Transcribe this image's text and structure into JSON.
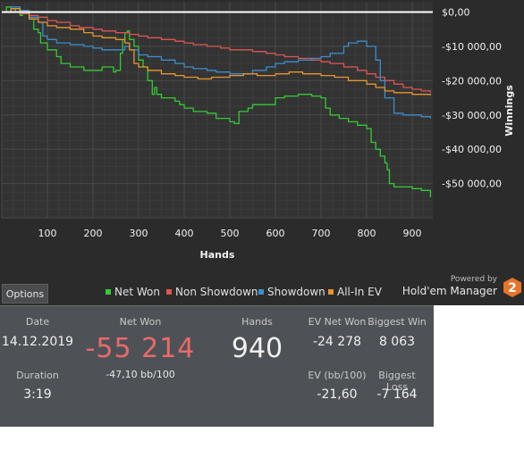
{
  "chart_data": {
    "type": "line",
    "xlabel": "Hands",
    "ylabel": "Winnings",
    "xlim": [
      0,
      945
    ],
    "ylim": [
      -60000,
      3000
    ],
    "x_ticks": [
      100,
      200,
      300,
      400,
      500,
      600,
      700,
      800,
      900
    ],
    "y_ticks": [
      0,
      -10000,
      -20000,
      -30000,
      -40000,
      -50000
    ],
    "y_tick_labels": [
      "$0,00",
      "-$10 000,00",
      "-$20 000,00",
      "-$30 000,00",
      "-$40 000,00",
      "-$50 000,00"
    ],
    "grid": true,
    "zero_line": true,
    "legend_position": "bottom",
    "series": [
      {
        "name": "Net Won",
        "color": "#33cc33",
        "x": [
          0,
          10,
          20,
          30,
          40,
          45,
          60,
          70,
          80,
          85,
          100,
          120,
          130,
          150,
          180,
          200,
          220,
          245,
          250,
          260,
          265,
          270,
          275,
          280,
          290,
          300,
          310,
          320,
          330,
          335,
          340,
          350,
          380,
          390,
          400,
          420,
          450,
          470,
          500,
          510,
          520,
          540,
          550,
          600,
          620,
          650,
          680,
          700,
          710,
          720,
          740,
          760,
          780,
          800,
          810,
          820,
          830,
          840,
          845,
          850,
          860,
          880,
          900,
          920,
          940
        ],
        "y": [
          0,
          1500,
          1000,
          0,
          -1000,
          -500,
          -2000,
          -5000,
          -6000,
          -9000,
          -11000,
          -13000,
          -15000,
          -16000,
          -17000,
          -17000,
          -16000,
          -17500,
          -17000,
          -12000,
          -8000,
          -6000,
          -5500,
          -8000,
          -10000,
          -14000,
          -16000,
          -20000,
          -24000,
          -22000,
          -24000,
          -25000,
          -26000,
          -27000,
          -28000,
          -29000,
          -29500,
          -31000,
          -32000,
          -32500,
          -29000,
          -28000,
          -27000,
          -25000,
          -24500,
          -24000,
          -24500,
          -25000,
          -28000,
          -30000,
          -31000,
          -32000,
          -33000,
          -34000,
          -38000,
          -40000,
          -42000,
          -44000,
          -46000,
          -50000,
          -51000,
          -51000,
          -51500,
          -52000,
          -54000
        ]
      },
      {
        "name": "Non Showdown",
        "color": "#e05555",
        "x": [
          0,
          20,
          40,
          60,
          80,
          100,
          120,
          150,
          170,
          200,
          220,
          250,
          280,
          300,
          320,
          350,
          380,
          400,
          420,
          450,
          480,
          500,
          550,
          580,
          600,
          620,
          650,
          680,
          700,
          720,
          750,
          780,
          800,
          820,
          840,
          860,
          880,
          900,
          920,
          940
        ],
        "y": [
          0,
          0,
          -500,
          -1000,
          -1500,
          -2500,
          -3000,
          -4000,
          -4500,
          -5000,
          -5500,
          -6000,
          -6500,
          -7000,
          -7500,
          -8000,
          -8500,
          -9000,
          -9500,
          -10000,
          -10500,
          -11000,
          -11500,
          -12000,
          -12500,
          -13000,
          -13500,
          -14000,
          -14500,
          -15000,
          -16000,
          -17000,
          -18000,
          -19000,
          -20000,
          -21000,
          -22000,
          -22500,
          -23000,
          -23500
        ]
      },
      {
        "name": "Showdown",
        "color": "#3a8fd0",
        "x": [
          0,
          20,
          40,
          60,
          80,
          90,
          100,
          120,
          150,
          180,
          200,
          220,
          250,
          270,
          280,
          300,
          320,
          350,
          380,
          400,
          420,
          450,
          470,
          500,
          520,
          550,
          580,
          600,
          620,
          650,
          680,
          700,
          720,
          750,
          760,
          780,
          800,
          820,
          830,
          840,
          860,
          880,
          900,
          920,
          940
        ],
        "y": [
          0,
          1500,
          500,
          -1500,
          -3000,
          -7000,
          -8000,
          -9000,
          -9500,
          -10000,
          -10500,
          -11000,
          -11000,
          -10000,
          -11000,
          -12500,
          -13000,
          -14000,
          -15000,
          -16000,
          -16500,
          -17000,
          -17500,
          -18000,
          -18000,
          -17000,
          -16000,
          -15000,
          -14500,
          -14000,
          -13500,
          -13000,
          -12000,
          -10000,
          -9000,
          -8500,
          -10000,
          -14000,
          -20000,
          -25000,
          -29500,
          -30000,
          -30000,
          -30500,
          -31000
        ]
      },
      {
        "name": "All-In EV",
        "color": "#e8962e",
        "x": [
          0,
          20,
          40,
          60,
          80,
          100,
          120,
          150,
          180,
          200,
          220,
          250,
          270,
          280,
          290,
          300,
          320,
          350,
          380,
          400,
          430,
          460,
          500,
          530,
          560,
          600,
          630,
          660,
          700,
          730,
          760,
          800,
          820,
          840,
          860,
          880,
          900,
          920,
          940
        ],
        "y": [
          0,
          1000,
          0,
          -2000,
          -3000,
          -4000,
          -4500,
          -5000,
          -6000,
          -7000,
          -7500,
          -8000,
          -9000,
          -11000,
          -15000,
          -16000,
          -17000,
          -18000,
          -18500,
          -19000,
          -19500,
          -19000,
          -18500,
          -18000,
          -18500,
          -18000,
          -17500,
          -18000,
          -18500,
          -19000,
          -20000,
          -21000,
          -22000,
          -23000,
          -23500,
          -23500,
          -24000,
          -24000,
          -24278
        ]
      }
    ]
  },
  "options_label": "Options",
  "powered_by": "Powered by",
  "brand": "Hold'em Manager",
  "brand_logo_text": "2",
  "stats": {
    "date_label": "Date",
    "date_value": "14.12.2019",
    "duration_label": "Duration",
    "duration_value": "3:19",
    "net_won_label": "Net Won",
    "net_won_value": "-55 214",
    "net_won_bb": "-47,10 bb/100",
    "hands_label": "Hands",
    "hands_value": "940",
    "ev_net_won_label": "EV Net Won",
    "ev_net_won_value": "-24 278",
    "ev_bb_label": "EV (bb/100)",
    "ev_bb_value": "-21,60",
    "biggest_win_label": "Biggest Win",
    "biggest_win_value": "8 063",
    "biggest_loss_label": "Biggest Loss",
    "biggest_loss_value": "-7 164"
  }
}
